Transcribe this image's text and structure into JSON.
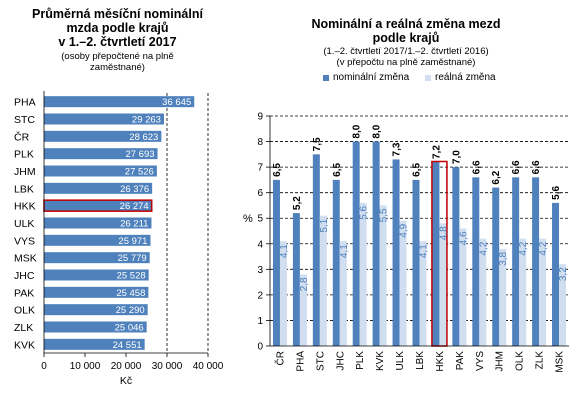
{
  "colors": {
    "primary_bar": "#4f81bd",
    "secondary_bar": "#d0def0",
    "highlight_outline": "#c00000",
    "axis": "#000000",
    "grid": "#000000"
  },
  "chart_data": [
    {
      "type": "bar",
      "orientation": "horizontal",
      "title_lines": [
        "Průměrná měsíční nominální",
        "mzda podle krajů",
        "v 1.–2. čtvrtletí  2017"
      ],
      "subtitle_lines": [
        "(osoby přepočtené na plně",
        "zaměstnané)"
      ],
      "xlabel": "Kč",
      "xlim": [
        0,
        40000
      ],
      "xticks": [
        0,
        10000,
        20000,
        30000,
        40000
      ],
      "xtick_labels": [
        "0",
        "10 000",
        "20 000",
        "30 000",
        "40 000"
      ],
      "reference_line": 30000,
      "highlight": "HKK",
      "categories": [
        "PHA",
        "STC",
        "ČR",
        "PLK",
        "JHM",
        "LBK",
        "HKK",
        "ULK",
        "VYS",
        "MSK",
        "JHC",
        "PAK",
        "OLK",
        "ZLK",
        "KVK"
      ],
      "values": [
        36645,
        29263,
        28623,
        27693,
        27526,
        26376,
        26274,
        26211,
        25971,
        25779,
        25528,
        25458,
        25290,
        25046,
        24551
      ],
      "value_labels": [
        "36 645",
        "29 263",
        "28 623",
        "27 693",
        "27 526",
        "26 376",
        "26 274",
        "26 211",
        "25 971",
        "25 779",
        "25 528",
        "25 458",
        "25 290",
        "25 046",
        "24 551"
      ]
    },
    {
      "type": "bar",
      "orientation": "vertical",
      "title_lines": [
        "Nominální a reálná  změna mezd",
        "podle krajů"
      ],
      "subtitle_lines": [
        "(1.–2. čtvrtletí 2017/1.–2. čtvrtletí 2016)",
        "(v přepočtu na plně zaměstnané)"
      ],
      "ylabel": "%",
      "ylim": [
        0,
        9
      ],
      "yticks": [
        0,
        1,
        2,
        3,
        4,
        5,
        6,
        7,
        8,
        9
      ],
      "grid": true,
      "legend_position": "top",
      "highlight": "HKK",
      "categories": [
        "ČR",
        "PHA",
        "STC",
        "JHC",
        "PLK",
        "KVK",
        "ULK",
        "LBK",
        "HKK",
        "PAK",
        "VYS",
        "JHM",
        "OLK",
        "ZLK",
        "MSK"
      ],
      "series": [
        {
          "name": "nominální změna",
          "values": [
            6.5,
            5.2,
            7.5,
            6.5,
            8.0,
            8.0,
            7.3,
            6.5,
            7.2,
            7.0,
            6.6,
            6.2,
            6.6,
            6.6,
            5.6
          ],
          "labels": [
            "6,5",
            "5,2",
            "7,5",
            "6,5",
            "8,0",
            "8,0",
            "7,3",
            "6,5",
            "7,2",
            "7,0",
            "6,6",
            "6,2",
            "6,6",
            "6,6",
            "5,6"
          ]
        },
        {
          "name": "reálná změna",
          "values": [
            4.1,
            2.8,
            5.1,
            4.1,
            5.6,
            5.5,
            4.9,
            4.1,
            4.8,
            4.6,
            4.2,
            3.8,
            4.2,
            4.2,
            3.2
          ],
          "labels": [
            "4,1",
            "2,8",
            "5,1",
            "4,1",
            "5,6",
            "5,5",
            "4,9",
            "4,1",
            "4,8",
            "4,6",
            "4,2",
            "3,8",
            "4,2",
            "4,2",
            "3,2"
          ]
        }
      ]
    }
  ]
}
